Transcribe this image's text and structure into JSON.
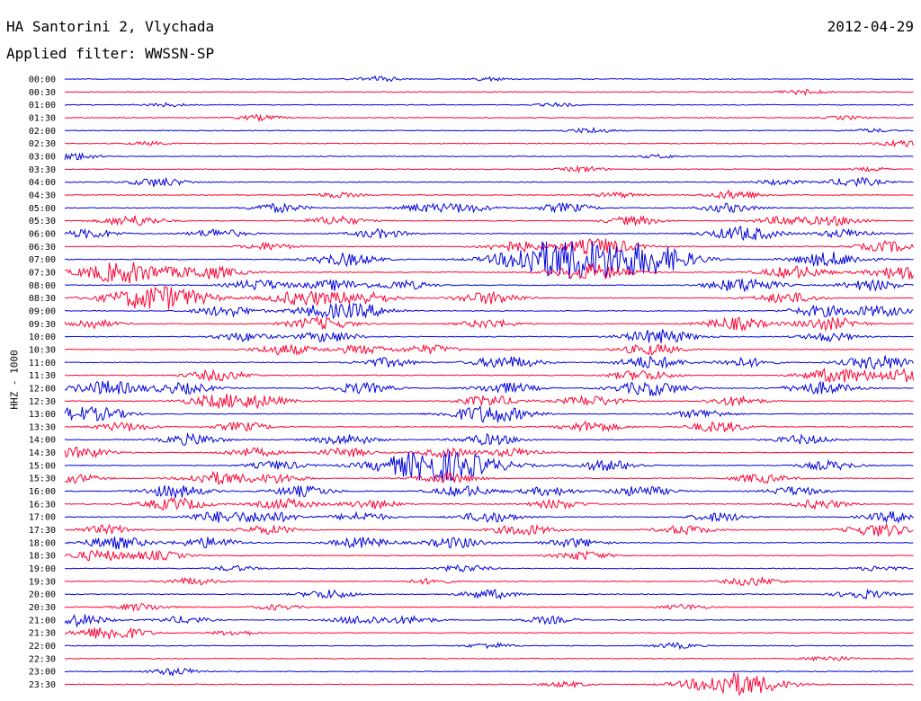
{
  "header": {
    "station": "HA Santorini 2, Vlychada",
    "date": "2012-04-29",
    "filter": "Applied filter: WWSSN-SP"
  },
  "axis_label": "HHZ - 1000",
  "colors": {
    "blue": "#0000dd",
    "red": "#ff0033"
  },
  "chart_data": {
    "type": "line",
    "title": "HA Santorini 2, Vlychada",
    "subtitle": "Applied filter: WWSSN-SP",
    "ylabel": "HHZ - 1000",
    "rows": [
      {
        "time": "00:00",
        "color": "blue",
        "events": [
          [
            0.37,
            3
          ],
          [
            0.5,
            2
          ]
        ]
      },
      {
        "time": "00:30",
        "color": "red",
        "events": [
          [
            0.87,
            3
          ]
        ]
      },
      {
        "time": "01:00",
        "color": "blue",
        "events": [
          [
            0.12,
            2
          ],
          [
            0.58,
            2
          ]
        ]
      },
      {
        "time": "01:30",
        "color": "red",
        "events": [
          [
            0.23,
            3
          ],
          [
            0.92,
            2
          ]
        ]
      },
      {
        "time": "02:00",
        "color": "blue",
        "events": [
          [
            0.62,
            3
          ],
          [
            0.95,
            2
          ]
        ]
      },
      {
        "time": "02:30",
        "color": "red",
        "events": [
          [
            0.1,
            2
          ],
          [
            0.99,
            4
          ]
        ]
      },
      {
        "time": "03:00",
        "color": "blue",
        "events": [
          [
            0.01,
            4
          ],
          [
            0.7,
            2
          ]
        ]
      },
      {
        "time": "03:30",
        "color": "red",
        "events": [
          [
            0.61,
            3
          ],
          [
            0.95,
            2
          ]
        ]
      },
      {
        "time": "04:00",
        "color": "blue",
        "events": [
          [
            0.11,
            5
          ],
          [
            0.84,
            3
          ],
          [
            0.93,
            5
          ]
        ]
      },
      {
        "time": "04:30",
        "color": "red",
        "events": [
          [
            0.32,
            3
          ],
          [
            0.79,
            5
          ],
          [
            0.65,
            3
          ]
        ]
      },
      {
        "time": "05:00",
        "color": "blue",
        "events": [
          [
            0.25,
            5
          ],
          [
            0.42,
            4
          ],
          [
            0.47,
            5
          ],
          [
            0.59,
            5
          ],
          [
            0.78,
            5
          ]
        ]
      },
      {
        "time": "05:30",
        "color": "red",
        "events": [
          [
            0.08,
            6
          ],
          [
            0.32,
            5
          ],
          [
            0.67,
            5
          ],
          [
            0.85,
            5
          ],
          [
            0.91,
            5
          ]
        ]
      },
      {
        "time": "06:00",
        "color": "blue",
        "events": [
          [
            0.03,
            5
          ],
          [
            0.18,
            5
          ],
          [
            0.37,
            5
          ],
          [
            0.8,
            8
          ],
          [
            0.92,
            5
          ]
        ]
      },
      {
        "time": "06:30",
        "color": "red",
        "events": [
          [
            0.24,
            4
          ],
          [
            0.53,
            6
          ],
          [
            0.63,
            9
          ],
          [
            0.97,
            6
          ]
        ]
      },
      {
        "time": "07:00",
        "color": "blue",
        "events": [
          [
            0.33,
            7
          ],
          [
            0.55,
            6
          ],
          [
            0.61,
            22
          ],
          [
            0.7,
            10
          ],
          [
            0.9,
            8
          ]
        ]
      },
      {
        "time": "07:30",
        "color": "red",
        "events": [
          [
            0.07,
            12
          ],
          [
            0.17,
            7
          ],
          [
            0.62,
            9
          ],
          [
            0.86,
            7
          ],
          [
            0.99,
            8
          ]
        ]
      },
      {
        "time": "08:00",
        "color": "blue",
        "events": [
          [
            0.23,
            6
          ],
          [
            0.32,
            6
          ],
          [
            0.4,
            5
          ],
          [
            0.8,
            8
          ],
          [
            0.95,
            6
          ]
        ]
      },
      {
        "time": "08:30",
        "color": "red",
        "events": [
          [
            0.11,
            14
          ],
          [
            0.28,
            8
          ],
          [
            0.35,
            7
          ],
          [
            0.5,
            7
          ],
          [
            0.85,
            6
          ]
        ]
      },
      {
        "time": "09:00",
        "color": "blue",
        "events": [
          [
            0.19,
            6
          ],
          [
            0.3,
            6
          ],
          [
            0.35,
            7
          ],
          [
            0.89,
            6
          ],
          [
            0.96,
            6
          ]
        ]
      },
      {
        "time": "09:30",
        "color": "red",
        "events": [
          [
            0.03,
            5
          ],
          [
            0.3,
            7
          ],
          [
            0.5,
            5
          ],
          [
            0.79,
            7
          ],
          [
            0.9,
            7
          ]
        ]
      },
      {
        "time": "10:00",
        "color": "blue",
        "events": [
          [
            0.21,
            5
          ],
          [
            0.31,
            6
          ],
          [
            0.7,
            8
          ],
          [
            0.9,
            5
          ]
        ]
      },
      {
        "time": "10:30",
        "color": "red",
        "events": [
          [
            0.26,
            6
          ],
          [
            0.35,
            5
          ],
          [
            0.43,
            5
          ],
          [
            0.69,
            6
          ]
        ]
      },
      {
        "time": "11:00",
        "color": "blue",
        "events": [
          [
            0.38,
            5
          ],
          [
            0.52,
            7
          ],
          [
            0.69,
            7
          ],
          [
            0.8,
            5
          ],
          [
            0.96,
            8
          ]
        ]
      },
      {
        "time": "11:30",
        "color": "red",
        "events": [
          [
            0.18,
            6
          ],
          [
            0.68,
            6
          ],
          [
            0.91,
            8
          ],
          [
            0.99,
            7
          ]
        ]
      },
      {
        "time": "12:00",
        "color": "blue",
        "events": [
          [
            0.05,
            8
          ],
          [
            0.14,
            6
          ],
          [
            0.35,
            6
          ],
          [
            0.52,
            6
          ],
          [
            0.69,
            8
          ],
          [
            0.89,
            7
          ]
        ]
      },
      {
        "time": "12:30",
        "color": "red",
        "events": [
          [
            0.18,
            7
          ],
          [
            0.23,
            6
          ],
          [
            0.5,
            6
          ],
          [
            0.62,
            6
          ],
          [
            0.79,
            5
          ]
        ]
      },
      {
        "time": "13:00",
        "color": "blue",
        "events": [
          [
            0.01,
            6
          ],
          [
            0.05,
            5
          ],
          [
            0.5,
            10
          ],
          [
            0.75,
            5
          ]
        ]
      },
      {
        "time": "13:30",
        "color": "red",
        "events": [
          [
            0.07,
            5
          ],
          [
            0.21,
            5
          ],
          [
            0.62,
            6
          ],
          [
            0.77,
            6
          ]
        ]
      },
      {
        "time": "14:00",
        "color": "blue",
        "events": [
          [
            0.15,
            6
          ],
          [
            0.33,
            6
          ],
          [
            0.5,
            6
          ],
          [
            0.87,
            5
          ]
        ]
      },
      {
        "time": "14:30",
        "color": "red",
        "events": [
          [
            0.02,
            6
          ],
          [
            0.22,
            5
          ],
          [
            0.33,
            5
          ],
          [
            0.45,
            5
          ],
          [
            0.53,
            5
          ]
        ]
      },
      {
        "time": "15:00",
        "color": "blue",
        "events": [
          [
            0.25,
            5
          ],
          [
            0.44,
            18
          ],
          [
            0.64,
            6
          ],
          [
            0.9,
            5
          ]
        ]
      },
      {
        "time": "15:30",
        "color": "red",
        "events": [
          [
            0.01,
            5
          ],
          [
            0.18,
            7
          ],
          [
            0.25,
            5
          ],
          [
            0.45,
            6
          ],
          [
            0.82,
            5
          ]
        ]
      },
      {
        "time": "16:00",
        "color": "blue",
        "events": [
          [
            0.13,
            7
          ],
          [
            0.28,
            6
          ],
          [
            0.47,
            6
          ],
          [
            0.57,
            5
          ],
          [
            0.68,
            6
          ],
          [
            0.86,
            5
          ]
        ]
      },
      {
        "time": "16:30",
        "color": "red",
        "events": [
          [
            0.13,
            7
          ],
          [
            0.26,
            6
          ],
          [
            0.36,
            5
          ],
          [
            0.58,
            5
          ],
          [
            0.89,
            5
          ]
        ]
      },
      {
        "time": "17:00",
        "color": "blue",
        "events": [
          [
            0.18,
            6
          ],
          [
            0.24,
            6
          ],
          [
            0.35,
            5
          ],
          [
            0.5,
            6
          ],
          [
            0.77,
            5
          ],
          [
            0.98,
            6
          ]
        ]
      },
      {
        "time": "17:30",
        "color": "red",
        "events": [
          [
            0.05,
            5
          ],
          [
            0.24,
            5
          ],
          [
            0.54,
            6
          ],
          [
            0.73,
            5
          ],
          [
            0.96,
            7
          ]
        ]
      },
      {
        "time": "18:00",
        "color": "blue",
        "events": [
          [
            0.06,
            7
          ],
          [
            0.17,
            6
          ],
          [
            0.35,
            6
          ],
          [
            0.46,
            6
          ],
          [
            0.6,
            5
          ]
        ]
      },
      {
        "time": "18:30",
        "color": "red",
        "events": [
          [
            0.04,
            6
          ],
          [
            0.11,
            5
          ],
          [
            0.61,
            5
          ]
        ]
      },
      {
        "time": "19:00",
        "color": "blue",
        "events": [
          [
            0.2,
            3
          ],
          [
            0.47,
            4
          ],
          [
            0.96,
            3
          ]
        ]
      },
      {
        "time": "19:30",
        "color": "red",
        "events": [
          [
            0.15,
            4
          ],
          [
            0.43,
            3
          ],
          [
            0.81,
            5
          ]
        ]
      },
      {
        "time": "20:00",
        "color": "blue",
        "events": [
          [
            0.31,
            5
          ],
          [
            0.5,
            5
          ],
          [
            0.94,
            5
          ]
        ]
      },
      {
        "time": "20:30",
        "color": "red",
        "events": [
          [
            0.09,
            4
          ],
          [
            0.25,
            3
          ],
          [
            0.73,
            3
          ]
        ]
      },
      {
        "time": "21:00",
        "color": "blue",
        "events": [
          [
            0.01,
            7
          ],
          [
            0.14,
            4
          ],
          [
            0.35,
            5
          ],
          [
            0.41,
            4
          ],
          [
            0.57,
            4
          ]
        ]
      },
      {
        "time": "21:30",
        "color": "red",
        "events": [
          [
            0.04,
            5
          ],
          [
            0.07,
            5
          ],
          [
            0.2,
            3
          ]
        ]
      },
      {
        "time": "22:00",
        "color": "blue",
        "events": [
          [
            0.5,
            3
          ],
          [
            0.72,
            3
          ]
        ]
      },
      {
        "time": "22:30",
        "color": "red",
        "events": [
          [
            0.9,
            3
          ]
        ]
      },
      {
        "time": "23:00",
        "color": "blue",
        "events": [
          [
            0.13,
            4
          ]
        ]
      },
      {
        "time": "23:30",
        "color": "red",
        "events": [
          [
            0.59,
            3
          ],
          [
            0.79,
            13
          ]
        ]
      }
    ]
  }
}
